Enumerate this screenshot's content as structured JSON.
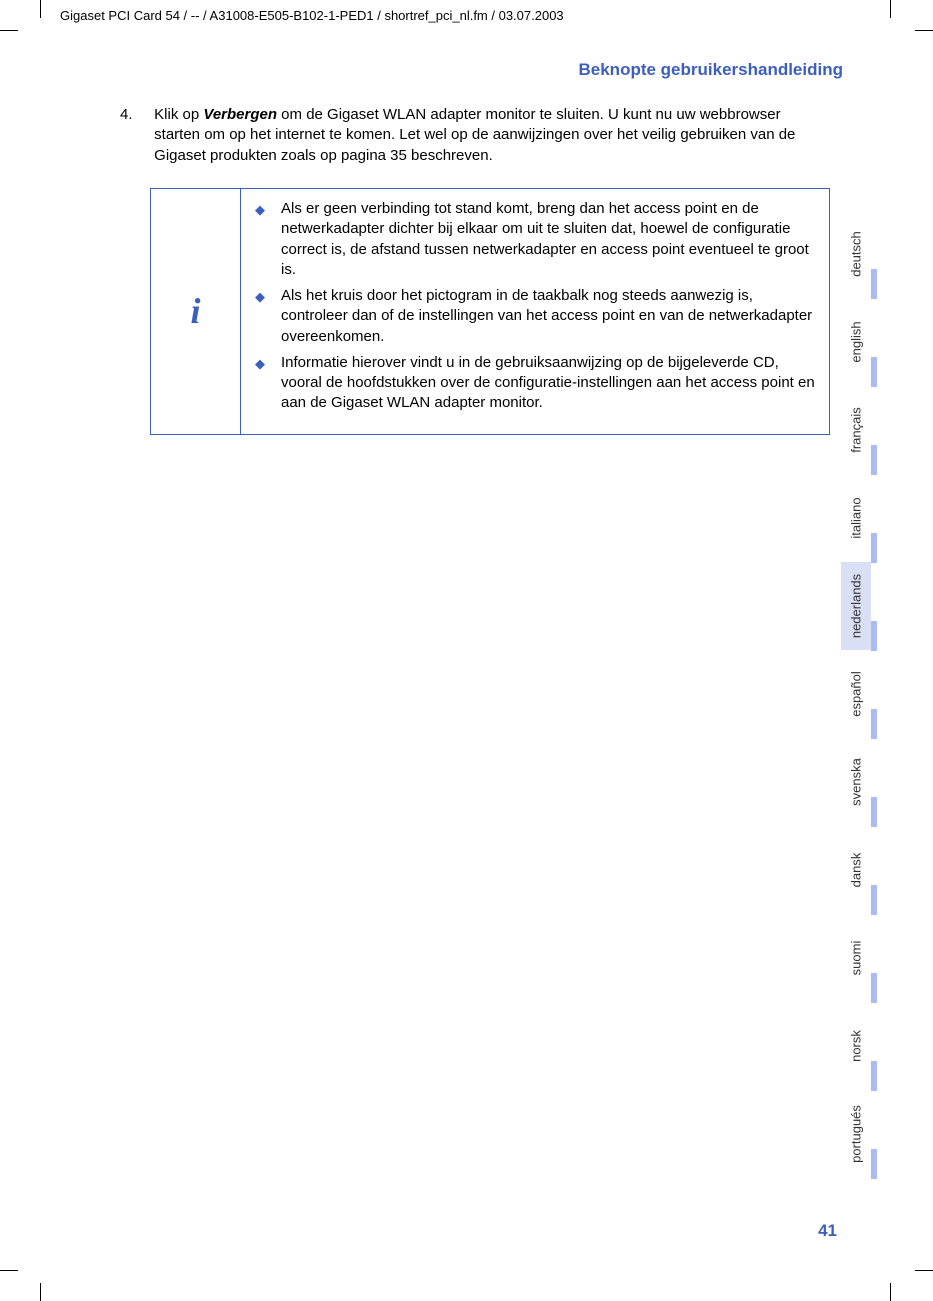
{
  "colors": {
    "title": "#3a5fbf",
    "border": "#3a5fbf",
    "info_icon": "#3a5fbf",
    "bullet": "#3a5fbf",
    "tab_bar": "#a9bdf0",
    "tab_active_bg": "#d9dff4",
    "page_number": "#3a5fbf",
    "text": "#000000"
  },
  "header_path": "Gigaset PCI Card 54 / -- / A31008-E505-B102-1-PED1 / shortref_pci_nl.fm / 03.07.2003",
  "page_title": "Beknopte gebruikershandleiding",
  "step": {
    "number": "4.",
    "prefix": "Klik op ",
    "bold": "Verbergen",
    "suffix": " om de Gigaset WLAN adapter monitor te sluiten. U kunt nu uw webbrowser starten om op het internet te komen. Let wel op de aanwijzingen over het veilig gebruiken van de Gigaset produkten zoals op pagina 35 beschreven."
  },
  "info_icon": "i",
  "info_bullets": [
    "Als er geen verbinding tot stand komt, breng dan het access point en de netwerkadapter dichter bij elkaar om uit te sluiten dat, hoewel de configuratie correct is, de afstand tussen netwerkadapter en access point eventueel te groot is.",
    "Als het kruis door het pictogram in de taakbalk nog steeds aanwezig is, controleer dan of de instellingen van het access point en van de netwerkadapter overeenkomen.",
    "Informatie hierover vindt u in de gebruiksaanwijzing op de bijgeleverde CD, vooral de hoofdstukken over de configuratie-instellingen aan het access point en aan de Gigaset WLAN adapter monitor."
  ],
  "bullet_glyph": "◆",
  "languages": [
    {
      "label": "deutsch",
      "active": false
    },
    {
      "label": "english",
      "active": false
    },
    {
      "label": "français",
      "active": false
    },
    {
      "label": "italiano",
      "active": false
    },
    {
      "label": "nederlands",
      "active": true
    },
    {
      "label": "español",
      "active": false
    },
    {
      "label": "svenska",
      "active": false
    },
    {
      "label": "dansk",
      "active": false
    },
    {
      "label": "suomi",
      "active": false
    },
    {
      "label": "norsk",
      "active": false
    },
    {
      "label": "portugués",
      "active": false
    }
  ],
  "page_number": "41"
}
